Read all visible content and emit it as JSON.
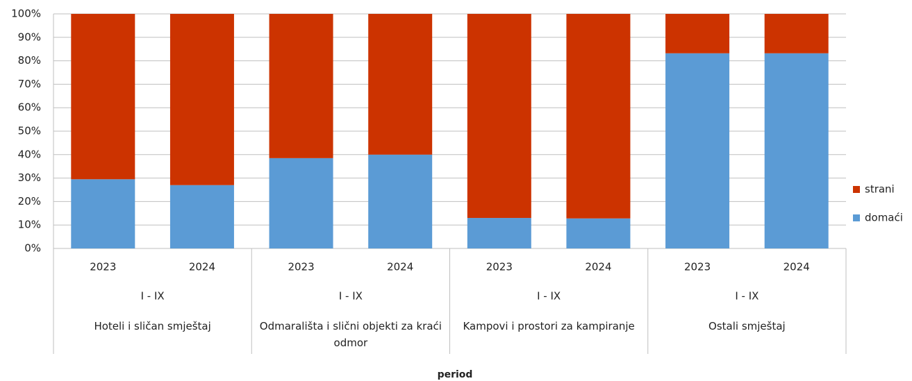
{
  "chart_data": {
    "type": "stacked_bar_100",
    "categories": [
      "2023",
      "2024",
      "2023",
      "2024",
      "2023",
      "2024",
      "2023",
      "2024"
    ],
    "groups": [
      {
        "period": "I - IX",
        "label": "Hoteli i sličan smještaj"
      },
      {
        "period": "I - IX",
        "label": "Odmarališta i slični objekti za kraći odmor"
      },
      {
        "period": "I - IX",
        "label": "Kampovi i prostori za kampiranje"
      },
      {
        "period": "I - IX",
        "label": "Ostali smještaj"
      }
    ],
    "series": [
      {
        "name": "domaći",
        "color": "#5b9bd5",
        "values": [
          29.5,
          27,
          38.5,
          40,
          13,
          12.8,
          83.2,
          83.2
        ]
      },
      {
        "name": "strani",
        "color": "#cc3300",
        "values": [
          70.5,
          73,
          61.5,
          60,
          87,
          87.2,
          16.8,
          16.8
        ]
      }
    ],
    "ylim": [
      0,
      100
    ],
    "yticks": [
      {
        "value": 0,
        "label": "0%"
      },
      {
        "value": 10,
        "label": "10%"
      },
      {
        "value": 20,
        "label": "20%"
      },
      {
        "value": 30,
        "label": "30%"
      },
      {
        "value": 40,
        "label": "40%"
      },
      {
        "value": 50,
        "label": "50%"
      },
      {
        "value": 60,
        "label": "60%"
      },
      {
        "value": 70,
        "label": "70%"
      },
      {
        "value": 80,
        "label": "80%"
      },
      {
        "value": 90,
        "label": "90%"
      },
      {
        "value": 100,
        "label": "100%"
      }
    ],
    "grid": true,
    "legend": "right",
    "x_label": "period"
  }
}
